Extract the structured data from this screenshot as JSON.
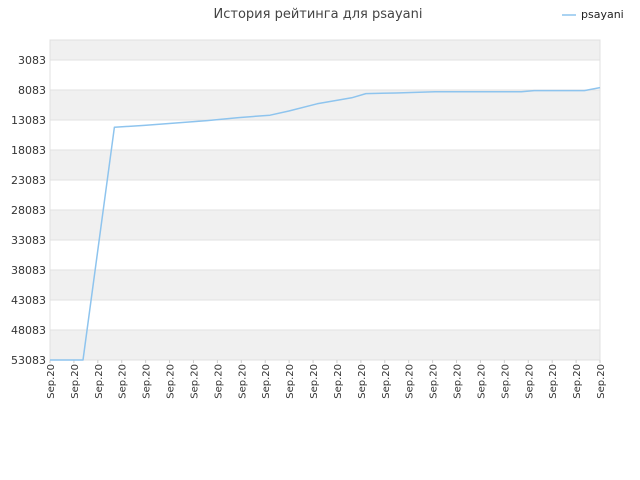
{
  "chart_data": {
    "type": "line",
    "title": "История рейтинга для psayani",
    "legend": {
      "position": "top-right"
    },
    "grid": true,
    "y_reversed": true,
    "ylim": [
      3083,
      53083
    ],
    "y_ticks": [
      "3083",
      "8083",
      "13083",
      "18083",
      "23083",
      "28083",
      "33083",
      "38083",
      "43083",
      "48083",
      "53083"
    ],
    "x_ticks": [
      "Sep.20",
      "Sep.20",
      "Sep.20",
      "Sep.20",
      "Sep.20",
      "Sep.20",
      "Sep.20",
      "Sep.20",
      "Sep.20",
      "Sep.20",
      "Sep.20",
      "Sep.20",
      "Sep.20",
      "Sep.20",
      "Sep.20",
      "Sep.20",
      "Sep.20",
      "Sep.20",
      "Sep.20",
      "Sep.20",
      "Sep.20",
      "Sep.20",
      "Sep.20",
      "Sep.20"
    ],
    "series": [
      {
        "name": "psayani",
        "color": "#8ec4ee",
        "x": [
          0,
          2.1,
          4.1,
          6,
          8,
          10,
          12,
          14,
          15.2,
          17,
          19.2,
          20.1,
          22,
          24.5,
          26,
          30,
          30.8,
          34,
          35
        ],
        "y": [
          53083,
          53083,
          14283,
          13983,
          13583,
          13183,
          12683,
          12283,
          11583,
          10383,
          9383,
          8683,
          8583,
          8383,
          8383,
          8383,
          8183,
          8183,
          7683
        ]
      }
    ]
  }
}
